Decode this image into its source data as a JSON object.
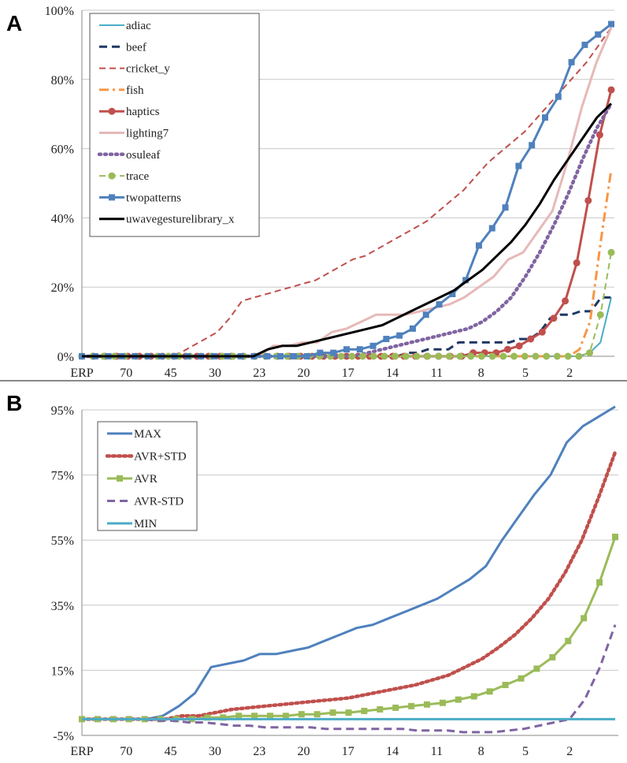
{
  "panels": {
    "a_label": "A",
    "b_label": "B"
  },
  "chart_data": [
    {
      "type": "line",
      "ylim": [
        0,
        100
      ],
      "yticks": [
        "0%",
        "20%",
        "40%",
        "60%",
        "80%",
        "100%"
      ],
      "x_tick_labels": [
        "ERP",
        "70",
        "45",
        "30",
        "23",
        "20",
        "17",
        "14",
        "11",
        "8",
        "5",
        "2"
      ],
      "legend_position": "top-left",
      "series": [
        {
          "name": "adiac",
          "color": "#4bacc6",
          "style": "solid",
          "marker": "none",
          "values": [
            0,
            0,
            0,
            0,
            0,
            0,
            0,
            0,
            0,
            0,
            0,
            0,
            0,
            0,
            0,
            0,
            0,
            0,
            0,
            0,
            0,
            0,
            0,
            0,
            0,
            0,
            0,
            0,
            0,
            0,
            0,
            0,
            0,
            0,
            0,
            0,
            0,
            0,
            0,
            0,
            0,
            0,
            0,
            0,
            0,
            0,
            0,
            1,
            4,
            17
          ]
        },
        {
          "name": "beef",
          "color": "#1f3864",
          "style": "dash-bold",
          "marker": "none",
          "values": [
            0,
            0,
            0,
            0,
            0,
            0,
            0,
            0,
            0,
            0,
            0,
            0,
            0,
            0,
            0,
            0,
            0,
            0,
            0,
            0,
            0,
            0,
            0,
            0,
            0,
            0,
            0,
            0,
            0,
            0,
            0,
            0,
            1,
            1,
            2,
            2,
            2,
            4,
            4,
            4,
            4,
            4,
            4,
            5,
            5,
            7,
            11,
            12,
            12,
            13,
            13,
            17,
            17
          ]
        },
        {
          "name": "cricket_y",
          "color": "#c0504d",
          "style": "dash",
          "marker": "none",
          "values": [
            0,
            0,
            0,
            0,
            0,
            0,
            0,
            0,
            1,
            3,
            5,
            7,
            11,
            16,
            17,
            18,
            19,
            20,
            21,
            22,
            24,
            26,
            28,
            29,
            31,
            33,
            35,
            37,
            39,
            42,
            45,
            48,
            52,
            56,
            59,
            62,
            65,
            69,
            73,
            77,
            81,
            85,
            90,
            95
          ]
        },
        {
          "name": "fish",
          "color": "#f79646",
          "style": "dashdot",
          "marker": "none",
          "values": [
            0,
            0,
            0,
            0,
            0,
            0,
            0,
            0,
            0,
            0,
            0,
            0,
            0,
            0,
            0,
            0,
            0,
            0,
            0,
            0,
            0,
            0,
            0,
            0,
            0,
            0,
            0,
            0,
            0,
            0,
            0,
            0,
            0,
            0,
            0,
            0,
            0,
            0,
            0,
            0,
            0,
            0,
            0,
            0,
            0,
            0,
            0,
            2,
            10,
            33,
            54
          ]
        },
        {
          "name": "haptics",
          "color": "#c0504d",
          "style": "solid-bold",
          "marker": "circle",
          "values": [
            0,
            0,
            0,
            0,
            0,
            0,
            0,
            0,
            0,
            0,
            0,
            0,
            0,
            0,
            0,
            0,
            0,
            0,
            0,
            0,
            0,
            0,
            0,
            0,
            0,
            0,
            0,
            0,
            0,
            0,
            0,
            0,
            0,
            0,
            1,
            1,
            1,
            2,
            3,
            5,
            7,
            11,
            16,
            27,
            45,
            64,
            77
          ]
        },
        {
          "name": "lighting7",
          "color": "#e6b9b8",
          "style": "solid-bold",
          "marker": "none",
          "values": [
            0,
            0,
            0,
            0,
            0,
            0,
            0,
            0,
            0,
            0,
            0,
            0,
            0,
            3,
            3,
            4,
            4,
            7,
            8,
            10,
            12,
            12,
            12,
            13,
            14,
            15,
            17,
            20,
            23,
            28,
            30,
            36,
            42,
            56,
            72,
            85,
            95
          ]
        },
        {
          "name": "osuleaf",
          "color": "#8064a2",
          "style": "dot",
          "marker": "none",
          "values": [
            0,
            0,
            0,
            0,
            0,
            0,
            0,
            0,
            0,
            0,
            0,
            0,
            0,
            0,
            0,
            0,
            0,
            0,
            0,
            0,
            1,
            2,
            3,
            4,
            5,
            6,
            7,
            8,
            10,
            13,
            17,
            23,
            30,
            38,
            47,
            57,
            66,
            73
          ]
        },
        {
          "name": "trace",
          "color": "#9bbb59",
          "style": "dash",
          "marker": "circle",
          "values": [
            0,
            0,
            0,
            0,
            0,
            0,
            0,
            0,
            0,
            0,
            0,
            0,
            0,
            0,
            0,
            0,
            0,
            0,
            0,
            0,
            0,
            0,
            0,
            0,
            0,
            0,
            0,
            0,
            0,
            0,
            0,
            0,
            0,
            0,
            0,
            0,
            0,
            0,
            0,
            0,
            0,
            0,
            0,
            0,
            0,
            0,
            0,
            1,
            12,
            30
          ]
        },
        {
          "name": "twopatterns",
          "color": "#4f81bd",
          "style": "solid-bold",
          "marker": "square",
          "values": [
            0,
            0,
            0,
            0,
            0,
            0,
            0,
            0,
            0,
            0,
            0,
            0,
            0,
            0,
            0,
            0,
            0,
            0,
            1,
            1,
            2,
            2,
            3,
            5,
            6,
            8,
            12,
            15,
            18,
            22,
            32,
            37,
            43,
            55,
            61,
            69,
            75,
            85,
            90,
            93,
            96
          ]
        },
        {
          "name": "uwavegesturelibrary_x",
          "color": "#000000",
          "style": "solid-bold",
          "marker": "none",
          "values": [
            0,
            0,
            0,
            0,
            0,
            0,
            0,
            0,
            0,
            0,
            0,
            0,
            0,
            2,
            3,
            3,
            4,
            5,
            6,
            7,
            8,
            9,
            11,
            13,
            15,
            17,
            19,
            22,
            25,
            29,
            33,
            38,
            44,
            51,
            57,
            63,
            69,
            73
          ]
        }
      ]
    },
    {
      "type": "line",
      "ylim": [
        -5,
        95
      ],
      "yticks": [
        "-5%",
        "15%",
        "35%",
        "55%",
        "75%",
        "95%"
      ],
      "x_tick_labels": [
        "ERP",
        "70",
        "45",
        "30",
        "23",
        "20",
        "17",
        "14",
        "11",
        "8",
        "5",
        "2"
      ],
      "legend_position": "top-left",
      "series": [
        {
          "name": "MAX",
          "color": "#4f81bd",
          "style": "solid-bold",
          "marker": "none",
          "values": [
            0,
            0,
            0,
            0,
            0,
            1,
            4,
            8,
            16,
            17,
            18,
            20,
            20,
            21,
            22,
            24,
            26,
            28,
            29,
            31,
            33,
            35,
            37,
            40,
            43,
            47,
            55,
            62,
            69,
            75,
            85,
            90,
            93,
            96
          ]
        },
        {
          "name": "AVR+STD",
          "color": "#c0504d",
          "style": "dot-bold",
          "marker": "none",
          "values": [
            0,
            0,
            0,
            0,
            0,
            0,
            1,
            1,
            2,
            3,
            3.5,
            4,
            4.5,
            5,
            5.5,
            6,
            6.5,
            7.5,
            8.5,
            9.5,
            10.5,
            12,
            13.5,
            16,
            18.5,
            22,
            26,
            31,
            37,
            45,
            55,
            68,
            82
          ]
        },
        {
          "name": "AVR",
          "color": "#9bbb59",
          "style": "solid-bold",
          "marker": "square",
          "values": [
            0,
            0,
            0,
            0,
            0,
            0,
            0,
            0,
            0.5,
            0.5,
            1,
            1,
            1,
            1,
            1.5,
            1.5,
            2,
            2,
            2.5,
            3,
            3.5,
            4,
            4.5,
            5,
            6,
            7,
            8.5,
            10.5,
            12.5,
            15.5,
            19,
            24,
            31,
            42,
            56
          ]
        },
        {
          "name": "AVR-STD",
          "color": "#8064a2",
          "style": "dash-bold",
          "marker": "none",
          "values": [
            0,
            0,
            0,
            0,
            0,
            -0.5,
            -0.5,
            -1,
            -1,
            -1.5,
            -2,
            -2,
            -2.5,
            -2.5,
            -2.5,
            -2.5,
            -3,
            -3,
            -3,
            -3,
            -3,
            -3,
            -3.5,
            -3.5,
            -3.5,
            -4,
            -4,
            -4,
            -3.5,
            -3,
            -2,
            -1,
            0,
            6,
            16,
            29
          ]
        },
        {
          "name": "MIN",
          "color": "#4bacc6",
          "style": "solid-bold",
          "marker": "none",
          "values": [
            0,
            0,
            0,
            0,
            0,
            0,
            0,
            0,
            0,
            0,
            0,
            0,
            0,
            0,
            0,
            0,
            0,
            0,
            0,
            0,
            0,
            0,
            0,
            0,
            0,
            0,
            0,
            0,
            0,
            0,
            0,
            0,
            0,
            0,
            0,
            0
          ]
        }
      ]
    }
  ]
}
